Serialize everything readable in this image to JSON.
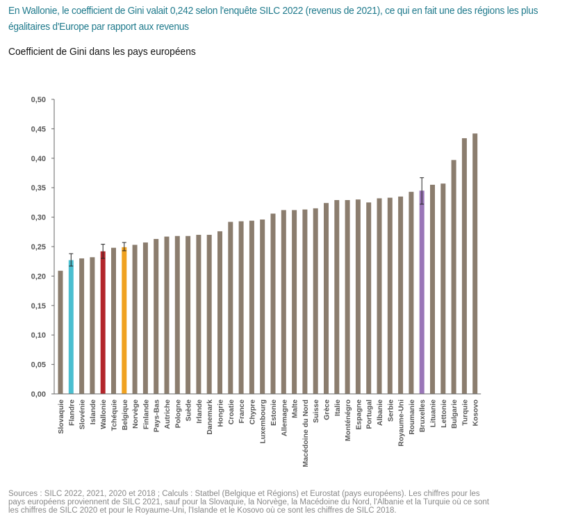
{
  "headline": "En Wallonie, le coefficient de Gini valait 0,242 selon l'enquête SILC 2022 (revenus de 2021), ce qui en fait une des régions les plus égalitaires d'Europe par rapport aux revenus",
  "subtitle": "Coefficient de Gini dans les pays européens",
  "sources": "Sources : SILC 2022, 2021, 2020 et 2018 ; Calculs : Statbel (Belgique et Régions) et Eurostat (pays européens). Les chiffres pour les pays européens proviennent de SILC 2021, sauf pour la Slovaquie, la Norvège, la Macédoine du Nord, l'Albanie et la Turquie où ce sont les chiffres de SILC 2020 et pour le Royaume-Uni, l'Islande et le Kosovo où ce sont les chiffres de SILC 2018.",
  "chart_data": {
    "type": "bar",
    "title": "",
    "xlabel": "",
    "ylabel": "",
    "ylim": [
      0,
      0.5
    ],
    "y_ticks": [
      "0,00",
      "0,05",
      "0,10",
      "0,15",
      "0,20",
      "0,25",
      "0,30",
      "0,35",
      "0,40",
      "0,45",
      "0,50"
    ],
    "y_tick_values": [
      0,
      0.05,
      0.1,
      0.15,
      0.2,
      0.25,
      0.3,
      0.35,
      0.4,
      0.45,
      0.5
    ],
    "grid": false,
    "default_color": "#8b7d6e",
    "categories": [
      "Slovaquie",
      "Flandre",
      "Slovénie",
      "Islande",
      "Wallonie",
      "Tchéquie",
      "Belgique",
      "Norvège",
      "Finlande",
      "Pays-Bas",
      "Autriche",
      "Pologne",
      "Suède",
      "Irlande",
      "Danemark",
      "Hongrie",
      "Croatie",
      "France",
      "Chypre",
      "Luxembourg",
      "Estonie",
      "Allemagne",
      "Malte",
      "Macédoine du Nord",
      "Suisse",
      "Grèce",
      "Italie",
      "Monténégro",
      "Espagne",
      "Portugal",
      "Albanie",
      "Serbie",
      "Royaume-Uni",
      "Roumanie",
      "Bruxelles",
      "Lituanie",
      "Lettonie",
      "Bulgarie",
      "Turquie",
      "Kosovo"
    ],
    "values": [
      0.209,
      0.227,
      0.23,
      0.232,
      0.242,
      0.248,
      0.249,
      0.253,
      0.257,
      0.263,
      0.267,
      0.268,
      0.268,
      0.27,
      0.27,
      0.276,
      0.292,
      0.293,
      0.294,
      0.296,
      0.306,
      0.312,
      0.312,
      0.313,
      0.315,
      0.324,
      0.329,
      0.329,
      0.33,
      0.325,
      0.332,
      0.333,
      0.335,
      0.343,
      0.345,
      0.355,
      0.357,
      0.397,
      0.434,
      0.442
    ],
    "highlights": [
      {
        "category": "Flandre",
        "color": "#4bbfd0",
        "error": [
          0.217,
          0.238
        ]
      },
      {
        "category": "Wallonie",
        "color": "#b3262b",
        "error": [
          0.23,
          0.254
        ]
      },
      {
        "category": "Belgique",
        "color": "#f0a220",
        "error": [
          0.243,
          0.257
        ]
      },
      {
        "category": "Bruxelles",
        "color": "#9a76b8",
        "error": [
          0.322,
          0.367
        ]
      }
    ]
  }
}
